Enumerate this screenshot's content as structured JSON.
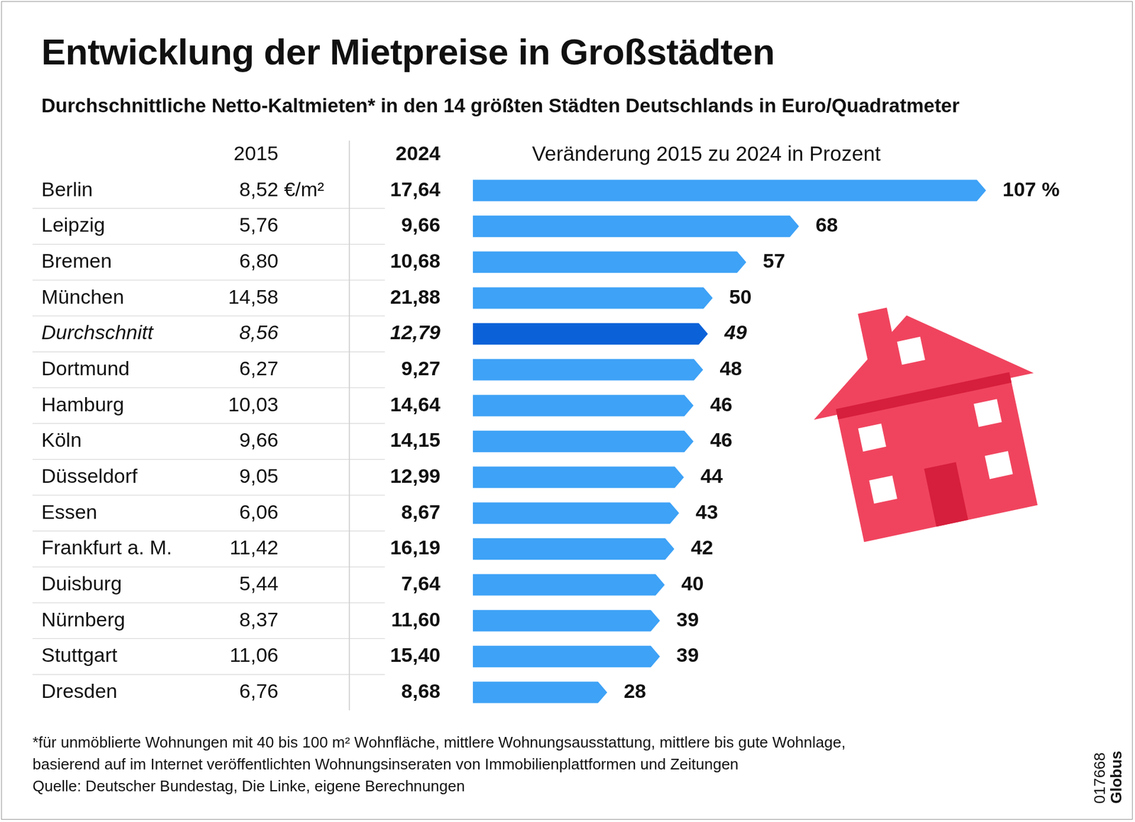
{
  "chart_data": {
    "type": "bar",
    "orientation": "horizontal",
    "title": "Entwicklung der Mietpreise in Großstädten",
    "subtitle": "Durchschnittliche Netto-Kaltmieten* in den 14 größten Städten Deutschlands in Euro/Quadratmeter",
    "value_header": "Veränderung 2015 zu 2024 in Prozent",
    "categories": [
      "Berlin",
      "Leipzig",
      "Bremen",
      "München",
      "Durchschnitt",
      "Dortmund",
      "Hamburg",
      "Köln",
      "Düsseldorf",
      "Essen",
      "Frankfurt a. M.",
      "Duisburg",
      "Nürnberg",
      "Stuttgart",
      "Dresden"
    ],
    "values": [
      107,
      68,
      57,
      50,
      49,
      48,
      46,
      46,
      44,
      43,
      42,
      40,
      39,
      39,
      28
    ],
    "value_labels": [
      "107 %",
      "68",
      "57",
      "50",
      "49",
      "48",
      "46",
      "46",
      "44",
      "43",
      "42",
      "40",
      "39",
      "39",
      "28"
    ],
    "colors": [
      "#3ea2f6",
      "#3ea2f6",
      "#3ea2f6",
      "#3ea2f6",
      "#0b62d8",
      "#3ea2f6",
      "#3ea2f6",
      "#3ea2f6",
      "#3ea2f6",
      "#3ea2f6",
      "#3ea2f6",
      "#3ea2f6",
      "#3ea2f6",
      "#3ea2f6",
      "#3ea2f6"
    ],
    "data_labels": true,
    "xlim": [
      0,
      107
    ],
    "tick_labels": false,
    "grid": false,
    "table": {
      "columns": [
        {
          "header": "2015",
          "cells": [
            "8,52 €/m²",
            "5,76",
            "6,80",
            "14,58",
            "8,56",
            "6,27",
            "10,03",
            "9,66",
            "9,05",
            "6,06",
            "11,42",
            "5,44",
            "8,37",
            "11,06",
            "6,76"
          ]
        },
        {
          "header": "2024",
          "cells": [
            "17,64",
            "9,66",
            "10,68",
            "21,88",
            "12,79",
            "9,27",
            "14,64",
            "14,15",
            "12,99",
            "8,67",
            "16,19",
            "7,64",
            "11,60",
            "15,40",
            "8,68"
          ]
        }
      ]
    },
    "footnote": [
      "*für unmöblierte Wohnungen mit 40 bis 100 m² Wohnfläche, mittlere Wohnungsausstattung, mittlere bis gute Wohnlage,",
      "basierend auf im Internet veröffentlichten Wohnungsinseraten von Immobilienplattformen und Zeitungen"
    ],
    "source": "Quelle: Deutscher Bundestag, Die Linke, eigene Berechnungen",
    "credit": [
      "017668",
      "Globus"
    ]
  }
}
